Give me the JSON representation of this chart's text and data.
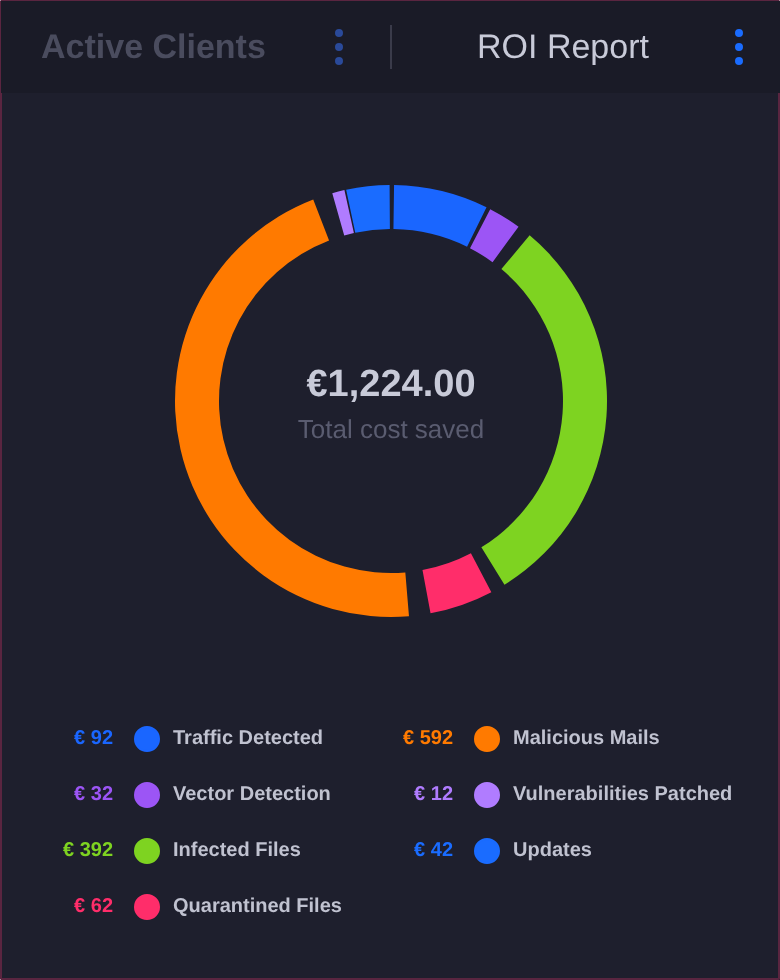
{
  "chart_data": {
    "type": "donut",
    "title": "ROI Report",
    "subtitle": "Active Clients",
    "annotations": [
      "€1,224.00",
      "Total cost saved"
    ],
    "categories": [
      "Traffic Detected",
      "Vector Detection",
      "Infected Files",
      "Quarantined Files",
      "Malicious Mails",
      "Vulnerabilities Patched",
      "Updates"
    ],
    "values": [
      92,
      32,
      392,
      62,
      592,
      12,
      42
    ],
    "value_labels": [
      "€ 92",
      "€ 32",
      "€ 392",
      "€ 62",
      "€ 592",
      "€ 12",
      "€ 42"
    ],
    "colors": [
      "#1a66ff",
      "#9c55f5",
      "#7ed321",
      "#ff2d6a",
      "#ff7a00",
      "#b07cff",
      "#1a6cff"
    ],
    "legend": "bottom"
  }
}
